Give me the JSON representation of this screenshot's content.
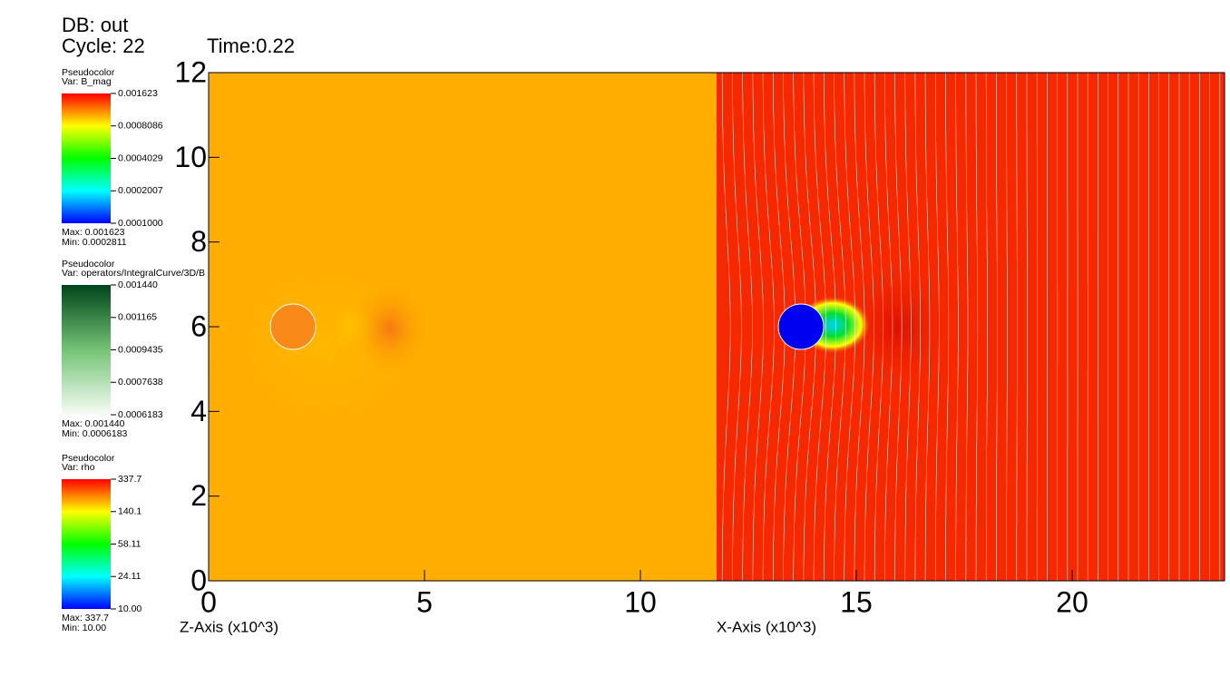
{
  "header": {
    "database": "DB: out",
    "cycle": "Cycle: 22",
    "time": "Time:0.22"
  },
  "legends": [
    {
      "title": "Pseudocolor",
      "variable": "Var: B_mag",
      "scale": "log",
      "colormap": "rainbow",
      "ticks": [
        {
          "value": 0.0001,
          "label": "0.0001000"
        },
        0.0002007,
        0.0004029,
        0.0008086,
        0.001623
      ],
      "max": "Max:  0.001623",
      "min": "Min:  0.0002811"
    },
    {
      "title": "Pseudocolor",
      "variable": "Var: operators/IntegralCurve/3D/B",
      "scale": "log",
      "colormap": "greens",
      "ticks": [
        0.0006183,
        0.0007638,
        0.0009435,
        0.001165,
        {
          "value": 0.00144,
          "label": "0.001440"
        }
      ],
      "max": "Max:  0.001440",
      "min": "Min:  0.0006183"
    },
    {
      "title": "Pseudocolor",
      "variable": "Var: rho",
      "scale": "log",
      "colormap": "rainbow",
      "ticks": [
        {
          "value": 10,
          "label": "10.00"
        },
        24.11,
        58.11,
        140.1,
        337.7
      ],
      "max": "Max:  337.7",
      "min": "Min:  10.00"
    }
  ],
  "chart_data": {
    "type": "pseudocolor",
    "xlabels": [
      "Z-Axis (x10^3)",
      "X-Axis (x10^3)"
    ],
    "xlim": [
      0,
      23.53
    ],
    "ylim": [
      0,
      12
    ],
    "xticks": [
      0,
      5,
      10,
      15,
      20
    ],
    "yticks": [
      0,
      2,
      4,
      6,
      8,
      10,
      12
    ]
  }
}
